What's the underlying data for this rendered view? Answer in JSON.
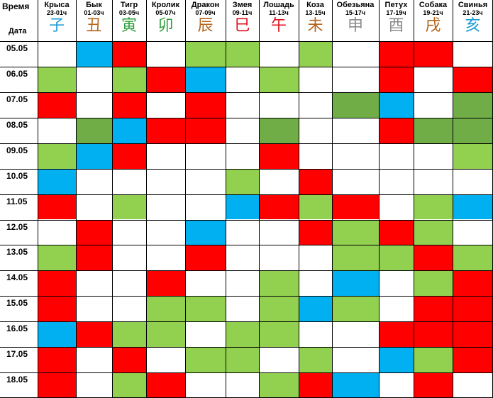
{
  "header": {
    "time_label": "Время",
    "date_label": "Дата"
  },
  "columns": [
    {
      "name": "Крыса",
      "hours": "23-01ч",
      "glyph": "子",
      "color": "#1a9ad6"
    },
    {
      "name": "Бык",
      "hours": "01-03ч",
      "glyph": "丑",
      "color": "#b5651d"
    },
    {
      "name": "Тигр",
      "hours": "03-05ч",
      "glyph": "寅",
      "color": "#2e9e3a"
    },
    {
      "name": "Кролик",
      "hours": "05-07ч",
      "glyph": "卯",
      "color": "#2e9e3a"
    },
    {
      "name": "Дракон",
      "hours": "07-09ч",
      "glyph": "辰",
      "color": "#b5651d"
    },
    {
      "name": "Змея",
      "hours": "09-11ч",
      "glyph": "巳",
      "color": "#e0141e"
    },
    {
      "name": "Лошадь",
      "hours": "11-13ч",
      "glyph": "午",
      "color": "#e0141e"
    },
    {
      "name": "Коза",
      "hours": "13-15ч",
      "glyph": "未",
      "color": "#b5651d"
    },
    {
      "name": "Обезьяна",
      "hours": "15-17ч",
      "glyph": "申",
      "color": "#8c8c8c"
    },
    {
      "name": "Петух",
      "hours": "17-19ч",
      "glyph": "酉",
      "color": "#8c8c8c"
    },
    {
      "name": "Собака",
      "hours": "19-21ч",
      "glyph": "戌",
      "color": "#b5651d"
    },
    {
      "name": "Свинья",
      "hours": "21-23ч",
      "glyph": "亥",
      "color": "#1a9ad6"
    }
  ],
  "palette": {
    "w": "#ffffff",
    "r": "#ff0000",
    "b": "#00b0f0",
    "g": "#92d050",
    "d": "#70ad47"
  },
  "rows": [
    {
      "date": "05.05",
      "cells": [
        "w",
        "b",
        "r",
        "w",
        "g",
        "g",
        "w",
        "g",
        "w",
        "r",
        "r",
        "w"
      ]
    },
    {
      "date": "06.05",
      "cells": [
        "g",
        "w",
        "g",
        "r",
        "b",
        "w",
        "g",
        "w",
        "w",
        "r",
        "w",
        "r"
      ]
    },
    {
      "date": "07.05",
      "cells": [
        "r",
        "w",
        "r",
        "w",
        "r",
        "w",
        "w",
        "w",
        "d",
        "b",
        "w",
        "d"
      ]
    },
    {
      "date": "08.05",
      "cells": [
        "w",
        "d",
        "b",
        "r",
        "r",
        "w",
        "d",
        "w",
        "w",
        "r",
        "d",
        "d"
      ]
    },
    {
      "date": "09.05",
      "cells": [
        "g",
        "b",
        "r",
        "w",
        "w",
        "w",
        "r",
        "w",
        "w",
        "w",
        "w",
        "g"
      ]
    },
    {
      "date": "10.05",
      "cells": [
        "b",
        "w",
        "w",
        "w",
        "w",
        "g",
        "w",
        "r",
        "w",
        "w",
        "w",
        "w"
      ]
    },
    {
      "date": "11.05",
      "cells": [
        "r",
        "w",
        "g",
        "w",
        "w",
        "b",
        "r",
        "g",
        "r",
        "w",
        "g",
        "b"
      ]
    },
    {
      "date": "12.05",
      "cells": [
        "w",
        "r",
        "w",
        "w",
        "b",
        "w",
        "w",
        "r",
        "g",
        "r",
        "g",
        "w"
      ]
    },
    {
      "date": "13.05",
      "cells": [
        "g",
        "r",
        "w",
        "w",
        "r",
        "w",
        "w",
        "w",
        "g",
        "g",
        "r",
        "g"
      ]
    },
    {
      "date": "14.05",
      "cells": [
        "r",
        "w",
        "w",
        "r",
        "w",
        "w",
        "g",
        "w",
        "b",
        "w",
        "g",
        "r"
      ]
    },
    {
      "date": "15.05",
      "cells": [
        "r",
        "w",
        "w",
        "g",
        "g",
        "w",
        "g",
        "b",
        "g",
        "w",
        "r",
        "r"
      ]
    },
    {
      "date": "16.05",
      "cells": [
        "b",
        "r",
        "g",
        "g",
        "w",
        "g",
        "g",
        "w",
        "w",
        "r",
        "r",
        "r"
      ]
    },
    {
      "date": "17.05",
      "cells": [
        "r",
        "w",
        "r",
        "w",
        "g",
        "g",
        "w",
        "g",
        "w",
        "b",
        "g",
        "r"
      ]
    },
    {
      "date": "18.05",
      "cells": [
        "r",
        "w",
        "g",
        "r",
        "w",
        "w",
        "g",
        "r",
        "b",
        "w",
        "r",
        "w"
      ]
    }
  ]
}
